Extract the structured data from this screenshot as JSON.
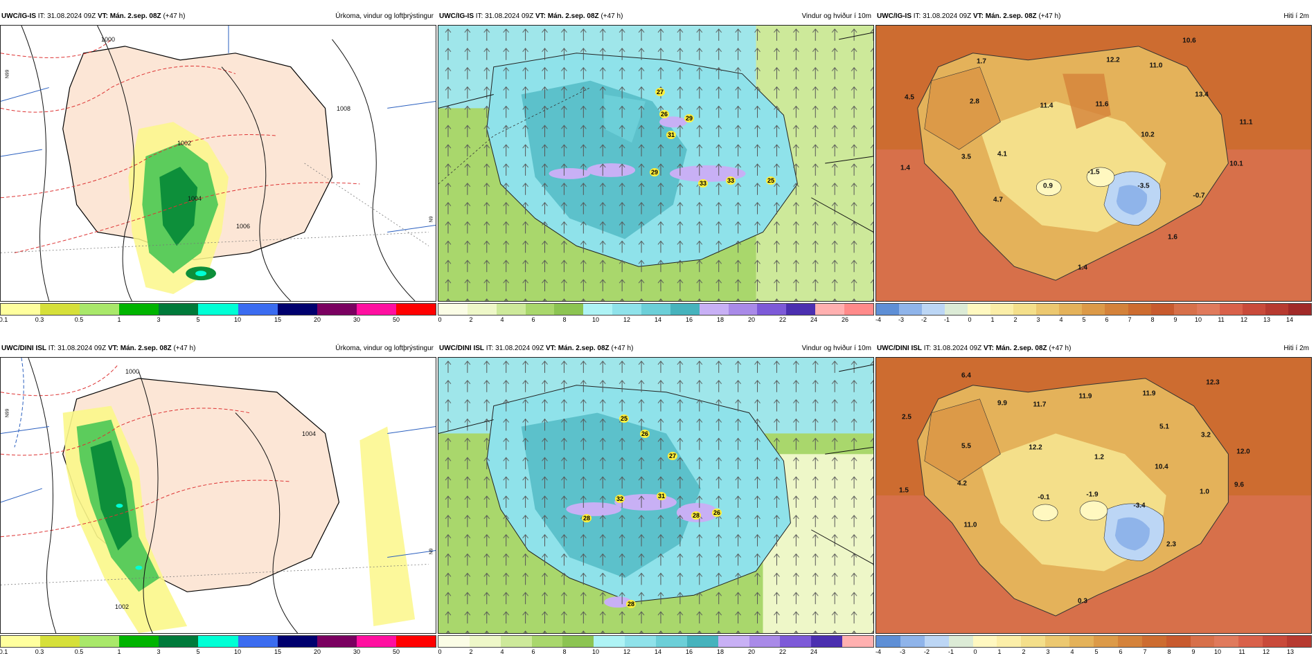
{
  "rows": [
    {
      "model": "UWC/IG-IS",
      "it_label": "IT:",
      "it": "31.08.2024 09Z",
      "vt_label": "VT:",
      "vt": "Mán. 2.sep. 08Z",
      "lead": "(+47 h)"
    },
    {
      "model": "UWC/DINI ISL",
      "it_label": "IT:",
      "it": "31.08.2024 09Z",
      "vt_label": "VT:",
      "vt": "Mán. 2.sep. 08Z",
      "lead": "(+47 h)"
    }
  ],
  "params": {
    "precip": "Úrkoma, vindur og loftþrýstingur",
    "wind": "Vindur og hviður í 10m",
    "temp": "Hiti í 2m"
  },
  "colorbars": {
    "precip": {
      "ticks": [
        "0.1",
        "0.3",
        "0.5",
        "1",
        "3",
        "5",
        "10",
        "15",
        "20",
        "30",
        "50"
      ],
      "colors": [
        "#ffff9e",
        "#d6e03a",
        "#a9e86a",
        "#00b400",
        "#007a3a",
        "#00ffd5",
        "#3b6cf0",
        "#00006e",
        "#7a0060",
        "#ff0fa0",
        "#ff0000"
      ]
    },
    "wind": {
      "ticks": [
        "0",
        "2",
        "4",
        "6",
        "8",
        "10",
        "12",
        "14",
        "16",
        "18",
        "20",
        "22",
        "24",
        "26"
      ],
      "colors": [
        "#fbfde6",
        "#eef7c8",
        "#cde99a",
        "#a9d76c",
        "#8cc452",
        "#aef3f5",
        "#8fe2ea",
        "#6ccfd8",
        "#46b3bd",
        "#c8b0f5",
        "#a98ae8",
        "#7d5ad8",
        "#4b2fb0",
        "#ffb0b0",
        "#ff8a8a"
      ]
    },
    "temp": {
      "ticks_top": [
        "-4",
        "-3",
        "-2",
        "-1",
        "0",
        "1",
        "2",
        "3",
        "4",
        "5",
        "6",
        "7",
        "8",
        "9",
        "10",
        "11",
        "12",
        "13",
        "14"
      ],
      "ticks_bottom": [
        "-4",
        "-3",
        "-2",
        "-1",
        "0",
        "1",
        "2",
        "3",
        "4",
        "5",
        "6",
        "7",
        "8",
        "9",
        "10",
        "11",
        "12",
        "13"
      ],
      "colors": [
        "#5e8fd6",
        "#8fb4ea",
        "#bcd6f5",
        "#dcebd6",
        "#fff8c0",
        "#fbeea8",
        "#f4df8a",
        "#ecc870",
        "#e4b25a",
        "#dc9a48",
        "#d4823a",
        "#cd6c30",
        "#c85a2e",
        "#d7704a",
        "#e07a5c",
        "#d9614a",
        "#c94a3a",
        "#b73a30",
        "#a12a28"
      ]
    }
  },
  "labels": {
    "ig_gusts": [
      "27",
      "26",
      "29",
      "31",
      "29",
      "33",
      "33",
      "25"
    ],
    "ig_temps": [
      "10.6",
      "1.7",
      "12.2",
      "11.0",
      "4.5",
      "2.8",
      "11.4",
      "11.6",
      "13.4",
      "11.1",
      "10.2",
      "4.1",
      "3.5",
      "10.1",
      "1.4",
      "0.9",
      "-1.5",
      "-3.5",
      "-0.7",
      "4.7",
      "1.6",
      "1.4"
    ],
    "dini_gusts": [
      "25",
      "26",
      "27",
      "32",
      "31",
      "28",
      "26",
      "28",
      "28"
    ],
    "dini_temps": [
      "6.4",
      "12.3",
      "9.9",
      "11.9",
      "11.9",
      "11.7",
      "2.5",
      "5.1",
      "3.2",
      "5.5",
      "12.2",
      "12.0",
      "1.2",
      "10.4",
      "4.2",
      "9.6",
      "1.5",
      "-0.1",
      "-1.9",
      "1.0",
      "-3.4",
      "11.0",
      "2.3",
      "0.3"
    ]
  },
  "precip_contours": [
    "1000",
    "1002",
    "1004",
    "1006",
    "1008"
  ],
  "grid_side_labels": [
    "N99",
    "N9"
  ]
}
